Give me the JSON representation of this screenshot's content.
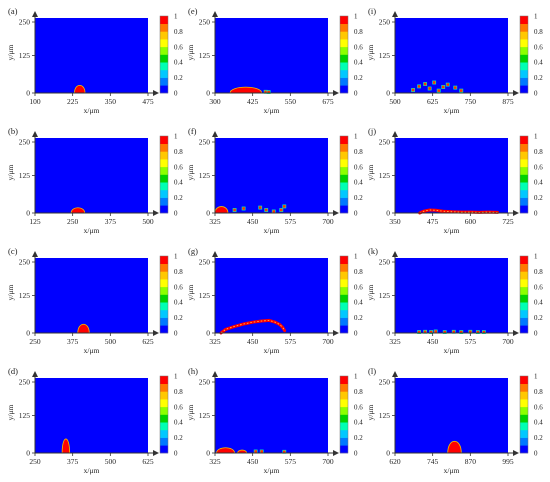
{
  "colors": {
    "background": "#0000ff",
    "droplet": "#ff0000",
    "colorbar": [
      "#0000ff",
      "#0078ff",
      "#00c8ff",
      "#00ffb4",
      "#00d200",
      "#8cff00",
      "#ffff00",
      "#ffc800",
      "#ff7800",
      "#ff0000"
    ]
  },
  "chart_data": [
    {
      "type": "heatmap",
      "label": "(a)",
      "xlabel": "x/μm",
      "ylabel": "y/μm",
      "xticks": [
        "100",
        "225",
        "350",
        "475"
      ],
      "yticks": [
        "0",
        "125",
        "250"
      ],
      "xlim": [
        100,
        475
      ],
      "ylim": [
        0,
        250
      ],
      "colorbar_ticks": [
        "0",
        "0.2",
        "0.4",
        "0.6",
        "0.8",
        "1"
      ],
      "features": [
        {
          "kind": "dome",
          "x0": 231,
          "x1": 266,
          "h": 26
        }
      ]
    },
    {
      "type": "heatmap",
      "label": "(b)",
      "xlabel": "x/μm",
      "ylabel": "y/μm",
      "xticks": [
        "125",
        "250",
        "375",
        "500"
      ],
      "yticks": [
        "0",
        "125",
        "250"
      ],
      "xlim": [
        125,
        500
      ],
      "ylim": [
        0,
        250
      ],
      "colorbar_ticks": [
        "0",
        "0.2",
        "0.4",
        "0.6",
        "0.8",
        "1"
      ],
      "features": [
        {
          "kind": "dome",
          "x0": 245,
          "x1": 290,
          "h": 18
        }
      ]
    },
    {
      "type": "heatmap",
      "label": "(c)",
      "xlabel": "x/μm",
      "ylabel": "y/μm",
      "xticks": [
        "250",
        "375",
        "500",
        "625"
      ],
      "yticks": [
        "0",
        "125",
        "250"
      ],
      "xlim": [
        250,
        625
      ],
      "ylim": [
        0,
        250
      ],
      "colorbar_ticks": [
        "0",
        "0.2",
        "0.4",
        "0.6",
        "0.8",
        "1"
      ],
      "features": [
        {
          "kind": "dome",
          "x0": 392,
          "x1": 430,
          "h": 30
        }
      ]
    },
    {
      "type": "heatmap",
      "label": "(d)",
      "xlabel": "x/μm",
      "ylabel": "y/μm",
      "xticks": [
        "250",
        "375",
        "500",
        "625"
      ],
      "yticks": [
        "0",
        "125",
        "250"
      ],
      "xlim": [
        250,
        625
      ],
      "ylim": [
        0,
        250
      ],
      "colorbar_ticks": [
        "0",
        "0.2",
        "0.4",
        "0.6",
        "0.8",
        "1"
      ],
      "features": [
        {
          "kind": "dome",
          "x0": 340,
          "x1": 365,
          "h": 48
        }
      ]
    },
    {
      "type": "heatmap",
      "label": "(e)",
      "xlabel": "x/μm",
      "ylabel": "y/μm",
      "xticks": [
        "300",
        "425",
        "550",
        "675"
      ],
      "yticks": [
        "0",
        "125",
        "250"
      ],
      "xlim": [
        300,
        675
      ],
      "ylim": [
        0,
        250
      ],
      "colorbar_ticks": [
        "0",
        "0.2",
        "0.4",
        "0.6",
        "0.8",
        "1"
      ],
      "features": [
        {
          "kind": "dome",
          "x0": 350,
          "x1": 455,
          "h": 20
        },
        {
          "kind": "dots",
          "pts": [
            [
              468,
              4
            ],
            [
              478,
              3
            ]
          ]
        }
      ]
    },
    {
      "type": "heatmap",
      "label": "(f)",
      "xlabel": "x/μm",
      "ylabel": "y/μm",
      "xticks": [
        "325",
        "450",
        "575",
        "700"
      ],
      "yticks": [
        "0",
        "125",
        "250"
      ],
      "xlim": [
        325,
        700
      ],
      "ylim": [
        0,
        250
      ],
      "colorbar_ticks": [
        "0",
        "0.2",
        "0.4",
        "0.6",
        "0.8",
        "1"
      ],
      "features": [
        {
          "kind": "dome",
          "x0": 325,
          "x1": 368,
          "h": 22
        },
        {
          "kind": "dots",
          "pts": [
            [
              390,
              10
            ],
            [
              420,
              15
            ],
            [
              475,
              18
            ],
            [
              495,
              10
            ],
            [
              520,
              5
            ],
            [
              545,
              10
            ],
            [
              555,
              22
            ]
          ]
        }
      ]
    },
    {
      "type": "heatmap",
      "label": "(g)",
      "xlabel": "x/μm",
      "ylabel": "y/μm",
      "xticks": [
        "325",
        "450",
        "575",
        "700"
      ],
      "yticks": [
        "0",
        "125",
        "250"
      ],
      "xlim": [
        325,
        700
      ],
      "ylim": [
        0,
        250
      ],
      "colorbar_ticks": [
        "0",
        "0.2",
        "0.4",
        "0.6",
        "0.8",
        "1"
      ],
      "features": [
        {
          "kind": "sheet",
          "pts": [
            [
              345,
              0
            ],
            [
              360,
              12
            ],
            [
              390,
              22
            ],
            [
              420,
              30
            ],
            [
              450,
              36
            ],
            [
              480,
              40
            ],
            [
              505,
              42
            ],
            [
              525,
              36
            ],
            [
              540,
              28
            ],
            [
              550,
              18
            ],
            [
              556,
              8
            ]
          ]
        }
      ]
    },
    {
      "type": "heatmap",
      "label": "(h)",
      "xlabel": "x/μm",
      "ylabel": "y/μm",
      "xticks": [
        "325",
        "450",
        "575",
        "700"
      ],
      "yticks": [
        "0",
        "125",
        "250"
      ],
      "xlim": [
        325,
        700
      ],
      "ylim": [
        0,
        250
      ],
      "colorbar_ticks": [
        "0",
        "0.2",
        "0.4",
        "0.6",
        "0.8",
        "1"
      ],
      "features": [
        {
          "kind": "dome",
          "x0": 330,
          "x1": 390,
          "h": 18
        },
        {
          "kind": "dome",
          "x0": 400,
          "x1": 430,
          "h": 10
        },
        {
          "kind": "dots",
          "pts": [
            [
              460,
              5
            ],
            [
              480,
              5
            ],
            [
              555,
              4
            ]
          ]
        }
      ]
    },
    {
      "type": "heatmap",
      "label": "(i)",
      "xlabel": "x/μm",
      "ylabel": "y/μm",
      "xticks": [
        "500",
        "625",
        "750",
        "875"
      ],
      "yticks": [
        "0",
        "125",
        "250"
      ],
      "xlim": [
        500,
        875
      ],
      "ylim": [
        0,
        250
      ],
      "colorbar_ticks": [
        "0",
        "0.2",
        "0.4",
        "0.6",
        "0.8",
        "1"
      ],
      "features": [
        {
          "kind": "dots",
          "pts": [
            [
              560,
              10
            ],
            [
              580,
              22
            ],
            [
              600,
              30
            ],
            [
              615,
              15
            ],
            [
              630,
              35
            ],
            [
              645,
              8
            ],
            [
              660,
              20
            ],
            [
              675,
              28
            ],
            [
              700,
              18
            ],
            [
              720,
              8
            ]
          ]
        }
      ]
    },
    {
      "type": "heatmap",
      "label": "(j)",
      "xlabel": "x/μm",
      "ylabel": "y/μm",
      "xticks": [
        "350",
        "475",
        "600",
        "725"
      ],
      "yticks": [
        "0",
        "125",
        "250"
      ],
      "xlim": [
        350,
        725
      ],
      "ylim": [
        0,
        250
      ],
      "colorbar_ticks": [
        "0",
        "0.2",
        "0.4",
        "0.6",
        "0.8",
        "1"
      ],
      "features": [
        {
          "kind": "sheet",
          "pts": [
            [
              432,
              0
            ],
            [
              445,
              6
            ],
            [
              465,
              10
            ],
            [
              485,
              9
            ],
            [
              510,
              6
            ],
            [
              540,
              4
            ],
            [
              570,
              3
            ],
            [
              600,
              3
            ],
            [
              630,
              2
            ],
            [
              660,
              3
            ],
            [
              690,
              2
            ]
          ]
        }
      ]
    },
    {
      "type": "heatmap",
      "label": "(k)",
      "xlabel": "x/μm",
      "ylabel": "y/μm",
      "xticks": [
        "325",
        "450",
        "575",
        "700"
      ],
      "yticks": [
        "0",
        "125",
        "250"
      ],
      "xlim": [
        325,
        700
      ],
      "ylim": [
        0,
        250
      ],
      "colorbar_ticks": [
        "0",
        "0.2",
        "0.4",
        "0.6",
        "0.8",
        "1"
      ],
      "features": [
        {
          "kind": "dots",
          "pts": [
            [
              405,
              3
            ],
            [
              425,
              4
            ],
            [
              445,
              3
            ],
            [
              460,
              5
            ],
            [
              490,
              3
            ],
            [
              520,
              4
            ],
            [
              545,
              3
            ],
            [
              575,
              4
            ],
            [
              600,
              3
            ],
            [
              620,
              3
            ]
          ]
        }
      ]
    },
    {
      "type": "heatmap",
      "label": "(l)",
      "xlabel": "x/μm",
      "ylabel": "y/μm",
      "xticks": [
        "620",
        "745",
        "870",
        "995"
      ],
      "yticks": [
        "0",
        "125",
        "250"
      ],
      "xlim": [
        620,
        995
      ],
      "ylim": [
        0,
        250
      ],
      "colorbar_ticks": [
        "0",
        "0.2",
        "0.4",
        "0.6",
        "0.8",
        "1"
      ],
      "features": [
        {
          "kind": "dome",
          "x0": 795,
          "x1": 840,
          "h": 40
        }
      ]
    }
  ]
}
